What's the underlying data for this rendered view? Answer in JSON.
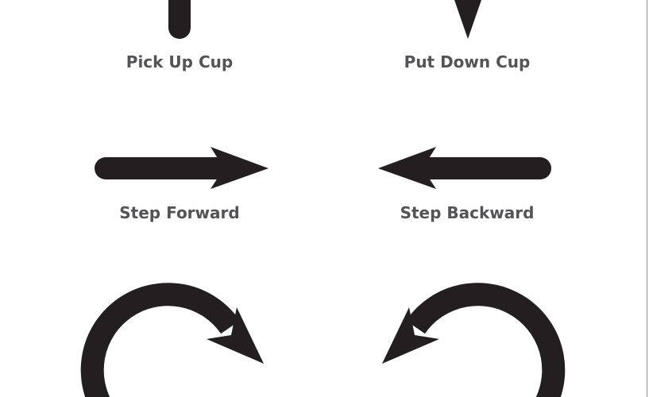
{
  "cards": [
    {
      "id": "pick-up-cup",
      "label": "Pick Up Cup",
      "icon": "up-arrow-icon"
    },
    {
      "id": "put-down-cup",
      "label": "Put Down Cup",
      "icon": "down-arrow-icon"
    },
    {
      "id": "step-forward",
      "label": "Step Forward",
      "icon": "right-arrow-icon"
    },
    {
      "id": "step-backward",
      "label": "Step Backward",
      "icon": "left-arrow-icon"
    },
    {
      "id": "turn-right",
      "label": "",
      "icon": "clockwise-arrow-icon"
    },
    {
      "id": "turn-left",
      "label": "",
      "icon": "counterclockwise-arrow-icon"
    }
  ],
  "colors": {
    "arrow": "#231f20",
    "label": "#545456",
    "background": "#ffffff"
  }
}
